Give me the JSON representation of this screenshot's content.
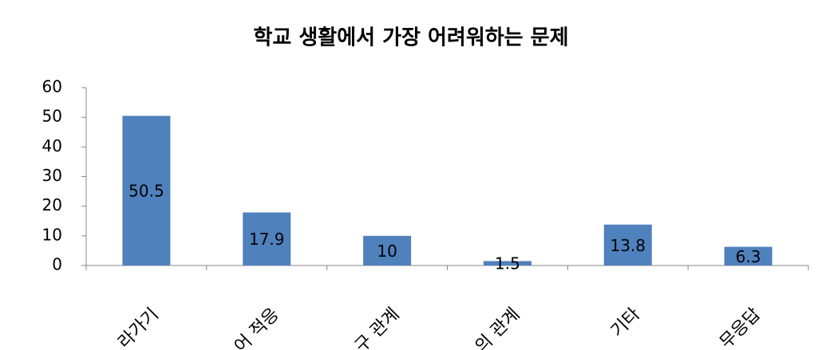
{
  "chart_data": {
    "type": "bar",
    "title": "학교 생활에서 가장 어려워하는 문제",
    "categories": [
      "라가기",
      "어 적응",
      "구 관계",
      "의 관계",
      "기타",
      "무응답"
    ],
    "values": [
      50.5,
      17.9,
      10,
      1.5,
      13.8,
      6.3
    ],
    "color": "#4f81bd",
    "ylim": [
      0,
      60
    ],
    "yticks": [
      0,
      10,
      20,
      30,
      40,
      50,
      60
    ],
    "grid": false
  }
}
